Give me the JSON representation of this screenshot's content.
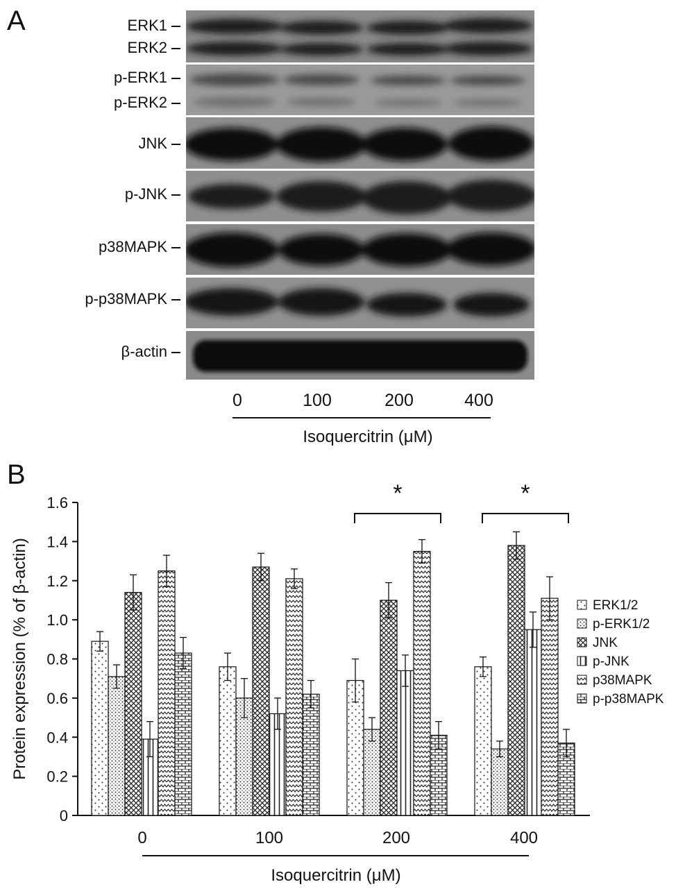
{
  "panels": {
    "a": "A",
    "b": "B"
  },
  "blot": {
    "rows": [
      {
        "labels": [
          "ERK1",
          "ERK2"
        ]
      },
      {
        "labels": [
          "p-ERK1",
          "p-ERK2"
        ]
      },
      {
        "labels": [
          "JNK"
        ]
      },
      {
        "labels": [
          "p-JNK"
        ]
      },
      {
        "labels": [
          "p38MAPK"
        ]
      },
      {
        "labels": [
          "p-p38MAPK"
        ]
      },
      {
        "labels": [
          "β-actin"
        ]
      }
    ],
    "lanes": [
      "0",
      "100",
      "200",
      "400"
    ],
    "xlabel": "Isoquercitrin (μM)"
  },
  "chart_data": {
    "type": "bar",
    "categories": [
      "0",
      "100",
      "200",
      "400"
    ],
    "xlabel": "Isoquercitrin (μM)",
    "ylabel": "Protein expression (% of β-actin)",
    "ylim": [
      0,
      1.6
    ],
    "yticks": [
      "0",
      "0.2",
      "0.4",
      "0.6",
      "0.8",
      "1.0",
      "1.2",
      "1.4",
      "1.6"
    ],
    "legend_position": "right",
    "series": [
      {
        "name": "ERK1/2",
        "values": [
          0.89,
          0.76,
          0.69,
          0.76
        ],
        "errors": [
          0.05,
          0.07,
          0.11,
          0.05
        ],
        "pattern": "dots"
      },
      {
        "name": "p-ERK1/2",
        "values": [
          0.71,
          0.6,
          0.44,
          0.34
        ],
        "errors": [
          0.06,
          0.1,
          0.06,
          0.04
        ],
        "pattern": "finedots"
      },
      {
        "name": "JNK",
        "values": [
          1.14,
          1.27,
          1.1,
          1.38
        ],
        "errors": [
          0.09,
          0.07,
          0.09,
          0.07
        ],
        "pattern": "crosshatch"
      },
      {
        "name": "p-JNK",
        "values": [
          0.39,
          0.52,
          0.74,
          0.95
        ],
        "errors": [
          0.09,
          0.08,
          0.08,
          0.09
        ],
        "pattern": "vlines"
      },
      {
        "name": "p38MAPK",
        "values": [
          1.25,
          1.21,
          1.35,
          1.11
        ],
        "errors": [
          0.08,
          0.05,
          0.06,
          0.11
        ],
        "pattern": "zigzag"
      },
      {
        "name": "p-p38MAPK",
        "values": [
          0.83,
          0.62,
          0.41,
          0.37
        ],
        "errors": [
          0.08,
          0.07,
          0.07,
          0.07
        ],
        "pattern": "bricks"
      }
    ],
    "significance": [
      {
        "group": "200",
        "label": "*"
      },
      {
        "group": "400",
        "label": "*"
      }
    ]
  }
}
